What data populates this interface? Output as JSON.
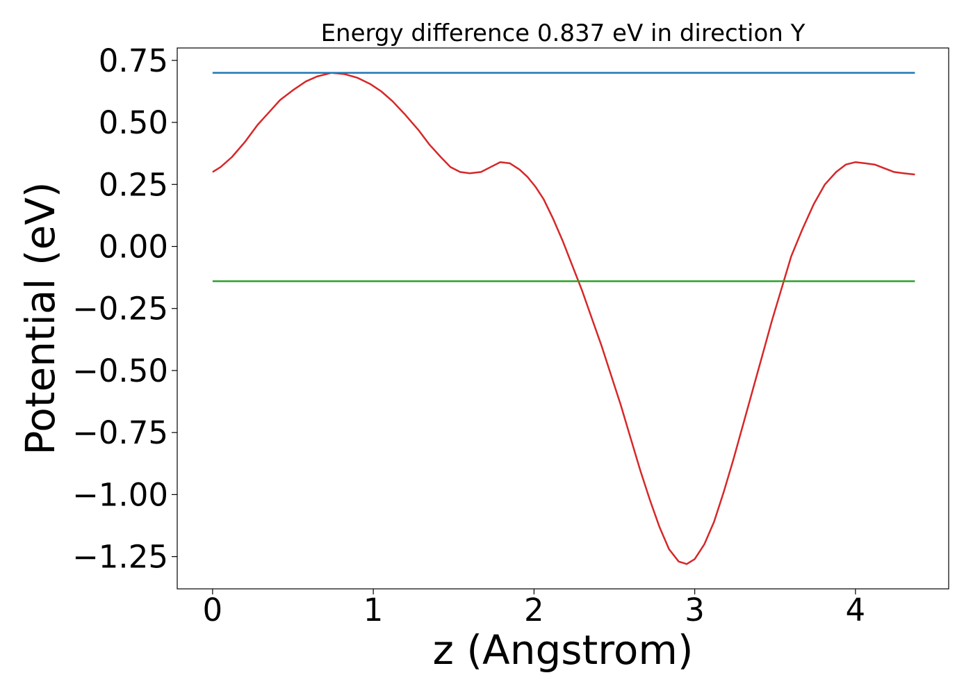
{
  "chart_data": {
    "type": "line",
    "title": "Energy difference 0.837 eV in direction Y",
    "xlabel": "z (Angstrom)",
    "ylabel": "Potential (eV)",
    "xlim": [
      -0.22,
      4.58
    ],
    "ylim": [
      -1.38,
      0.8
    ],
    "xticks": [
      0,
      1,
      2,
      3,
      4
    ],
    "xtick_labels": [
      "0",
      "1",
      "2",
      "3",
      "4"
    ],
    "yticks": [
      0.75,
      0.5,
      0.25,
      0.0,
      -0.25,
      -0.5,
      -0.75,
      -1.0,
      -1.25
    ],
    "ytick_labels": [
      "0.75",
      "0.50",
      "0.25",
      "0.00",
      "−0.25",
      "−0.50",
      "−0.75",
      "−1.00",
      "−1.25"
    ],
    "grid": false,
    "series": [
      {
        "color": "#d62728",
        "x": [
          0.0,
          0.05,
          0.12,
          0.2,
          0.28,
          0.35,
          0.42,
          0.5,
          0.58,
          0.65,
          0.74,
          0.82,
          0.9,
          0.98,
          1.05,
          1.12,
          1.2,
          1.28,
          1.35,
          1.42,
          1.48,
          1.54,
          1.6,
          1.67,
          1.73,
          1.79,
          1.85,
          1.91,
          1.96,
          2.01,
          2.06,
          2.12,
          2.18,
          2.24,
          2.3,
          2.36,
          2.42,
          2.48,
          2.54,
          2.6,
          2.66,
          2.72,
          2.78,
          2.84,
          2.9,
          2.95,
          3.0,
          3.06,
          3.12,
          3.18,
          3.24,
          3.3,
          3.36,
          3.42,
          3.48,
          3.54,
          3.6,
          3.67,
          3.74,
          3.81,
          3.88,
          3.94,
          4.0,
          4.06,
          4.12,
          4.18,
          4.24,
          4.3,
          4.37
        ],
        "y": [
          0.3,
          0.32,
          0.36,
          0.42,
          0.49,
          0.54,
          0.59,
          0.63,
          0.665,
          0.685,
          0.7,
          0.695,
          0.68,
          0.655,
          0.625,
          0.585,
          0.53,
          0.47,
          0.41,
          0.36,
          0.32,
          0.3,
          0.295,
          0.3,
          0.32,
          0.34,
          0.335,
          0.31,
          0.28,
          0.24,
          0.19,
          0.11,
          0.02,
          -0.08,
          -0.18,
          -0.29,
          -0.4,
          -0.52,
          -0.64,
          -0.77,
          -0.9,
          -1.02,
          -1.13,
          -1.22,
          -1.27,
          -1.28,
          -1.26,
          -1.2,
          -1.11,
          -0.99,
          -0.86,
          -0.72,
          -0.58,
          -0.44,
          -0.3,
          -0.17,
          -0.04,
          0.07,
          0.17,
          0.25,
          0.3,
          0.33,
          0.34,
          0.335,
          0.33,
          0.315,
          0.3,
          0.295,
          0.29
        ]
      },
      {
        "color": "#1f77b4",
        "x": [
          0.0,
          4.37
        ],
        "y": [
          0.7,
          0.7
        ]
      },
      {
        "color": "#2ca02c",
        "x": [
          0.0,
          4.37
        ],
        "y": [
          -0.14,
          -0.14
        ]
      }
    ]
  }
}
